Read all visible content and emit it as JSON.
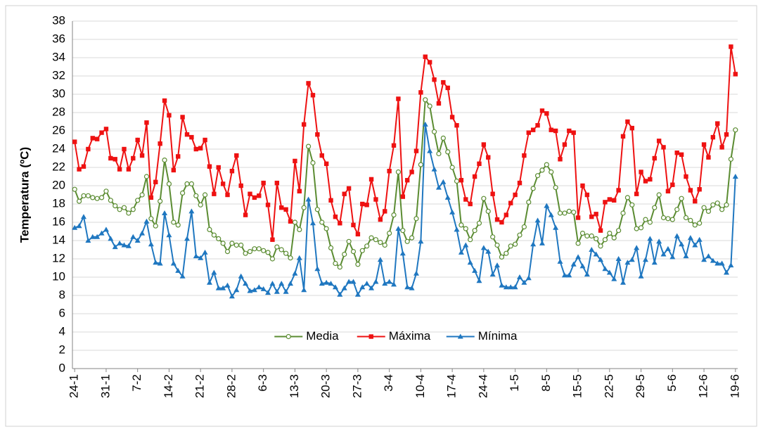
{
  "chart_data": {
    "type": "line",
    "y_label": "Temperatura (ºC)",
    "categories": [
      "24-1",
      null,
      null,
      null,
      null,
      null,
      null,
      "31-1",
      null,
      null,
      null,
      null,
      null,
      null,
      "7-2",
      null,
      null,
      null,
      null,
      null,
      null,
      "14-2",
      null,
      null,
      null,
      null,
      null,
      null,
      "21-2",
      null,
      null,
      null,
      null,
      null,
      null,
      "28-2",
      null,
      null,
      null,
      null,
      null,
      null,
      "6-3",
      null,
      null,
      null,
      null,
      null,
      null,
      "13-3",
      null,
      null,
      null,
      null,
      null,
      null,
      "20-3",
      null,
      null,
      null,
      null,
      null,
      null,
      "27-3",
      null,
      null,
      null,
      null,
      null,
      null,
      "3-4",
      null,
      null,
      null,
      null,
      null,
      null,
      "10-4",
      null,
      null,
      null,
      null,
      null,
      null,
      "17-4",
      null,
      null,
      null,
      null,
      null,
      null,
      "24-4",
      null,
      null,
      null,
      null,
      null,
      null,
      "1-5",
      null,
      null,
      null,
      null,
      null,
      null,
      "8-5",
      null,
      null,
      null,
      null,
      null,
      null,
      "15-5",
      null,
      null,
      null,
      null,
      null,
      null,
      "22-5",
      null,
      null,
      null,
      null,
      null,
      null,
      "29-5",
      null,
      null,
      null,
      null,
      null,
      null,
      "5-6",
      null,
      null,
      null,
      null,
      null,
      null,
      "12-6",
      null,
      null,
      null,
      null,
      null,
      null,
      "19-6"
    ],
    "series": [
      {
        "name": "Media",
        "color": "#5b8c32",
        "marker": "circle",
        "values": [
          19.6,
          18.3,
          18.9,
          18.9,
          18.7,
          18.6,
          18.7,
          19.4,
          18.4,
          17.8,
          17.4,
          17.6,
          17.0,
          17.4,
          18.4,
          19.0,
          21.0,
          16.4,
          15.6,
          18.3,
          22.8,
          20.2,
          16.0,
          15.7,
          19.2,
          20.2,
          20.2,
          18.9,
          17.9,
          19.0,
          15.2,
          14.6,
          14.2,
          13.7,
          12.8,
          13.7,
          13.5,
          13.5,
          12.6,
          12.8,
          13.1,
          13.1,
          12.9,
          12.7,
          12.0,
          13.3,
          13.0,
          12.6,
          12.1,
          16.0,
          15.2,
          17.6,
          24.3,
          22.5,
          17.4,
          16.0,
          15.3,
          13.2,
          11.5,
          11.1,
          12.5,
          13.9,
          12.8,
          11.4,
          12.9,
          13.4,
          14.3,
          14.1,
          13.8,
          13.5,
          14.8,
          16.8,
          21.5,
          15.1,
          13.9,
          14.3,
          16.4,
          22.3,
          29.4,
          28.7,
          25.9,
          23.5,
          25.2,
          23.7,
          22.0,
          20.5,
          15.7,
          15.3,
          14.1,
          15.1,
          15.9,
          18.6,
          17.2,
          14.4,
          13.5,
          12.2,
          12.6,
          13.4,
          13.6,
          14.6,
          15.5,
          18.2,
          19.7,
          21.1,
          21.7,
          22.3,
          21.5,
          19.8,
          17.0,
          17.0,
          17.2,
          17.1,
          13.7,
          14.8,
          14.5,
          14.5,
          14.2,
          13.4,
          14.1,
          14.8,
          14.3,
          15.1,
          17.0,
          18.7,
          17.9,
          15.3,
          15.4,
          16.3,
          16.0,
          17.6,
          19.0,
          16.5,
          16.4,
          16.3,
          17.4,
          18.6,
          16.5,
          16.2,
          15.7,
          15.9,
          17.6,
          17.2,
          17.9,
          18.1,
          17.4,
          17.9,
          22.9,
          26.1
        ]
      },
      {
        "name": "Máxima",
        "color": "#ee1111",
        "marker": "square",
        "values": [
          24.8,
          21.8,
          22.1,
          24.0,
          25.2,
          25.1,
          25.8,
          26.2,
          23.0,
          22.9,
          21.8,
          24.0,
          21.8,
          23.0,
          25.0,
          23.3,
          26.9,
          18.7,
          20.4,
          24.6,
          29.3,
          27.7,
          21.7,
          23.2,
          27.5,
          25.6,
          25.3,
          24.0,
          24.1,
          25.0,
          22.1,
          19.1,
          22.0,
          20.2,
          19.0,
          21.6,
          23.3,
          20.0,
          16.8,
          19.1,
          18.7,
          18.9,
          20.3,
          17.9,
          14.1,
          20.3,
          17.6,
          17.4,
          16.1,
          22.7,
          19.4,
          26.7,
          31.2,
          29.9,
          25.6,
          23.3,
          22.4,
          18.4,
          16.6,
          15.9,
          19.1,
          19.7,
          15.7,
          14.7,
          18.0,
          17.9,
          20.7,
          18.5,
          16.3,
          17.2,
          21.6,
          24.4,
          29.5,
          18.8,
          20.6,
          21.5,
          23.8,
          30.2,
          34.1,
          33.5,
          31.6,
          29.0,
          31.3,
          30.7,
          27.5,
          26.6,
          20.6,
          18.5,
          18.0,
          21.0,
          22.4,
          24.5,
          23.1,
          19.1,
          16.3,
          16.0,
          16.8,
          18.1,
          19.0,
          20.3,
          23.3,
          25.8,
          26.1,
          26.6,
          28.2,
          27.9,
          26.1,
          26.0,
          22.9,
          24.5,
          26.0,
          25.8,
          16.5,
          20.0,
          19.0,
          16.6,
          16.9,
          15.1,
          18.2,
          18.5,
          18.4,
          19.5,
          25.4,
          27.0,
          26.3,
          19.1,
          21.5,
          20.5,
          20.7,
          23.0,
          24.9,
          24.2,
          19.4,
          20.1,
          23.6,
          23.4,
          21.0,
          19.5,
          18.3,
          19.6,
          24.5,
          23.1,
          25.3,
          26.8,
          24.2,
          25.6,
          35.2,
          32.2
        ]
      },
      {
        "name": "Mínima",
        "color": "#1f77c0",
        "marker": "triangle",
        "values": [
          15.4,
          15.6,
          16.6,
          14.0,
          14.4,
          14.4,
          14.8,
          15.2,
          14.2,
          13.3,
          13.7,
          13.5,
          13.4,
          14.4,
          14.0,
          14.8,
          16.1,
          13.6,
          11.6,
          11.5,
          17.0,
          14.6,
          11.5,
          10.7,
          10.1,
          14.2,
          17.2,
          12.3,
          12.1,
          12.7,
          9.4,
          10.5,
          8.8,
          8.8,
          9.1,
          7.9,
          8.6,
          10.1,
          9.3,
          8.5,
          8.6,
          8.9,
          8.7,
          8.3,
          9.3,
          8.4,
          9.3,
          8.4,
          9.3,
          10.4,
          12.1,
          8.6,
          18.5,
          15.9,
          10.9,
          9.3,
          9.4,
          9.3,
          8.9,
          8.1,
          8.8,
          9.5,
          9.5,
          8.1,
          8.9,
          9.3,
          8.8,
          9.5,
          11.9,
          9.3,
          9.5,
          9.2,
          15.3,
          12.6,
          8.9,
          8.8,
          10.4,
          13.9,
          26.7,
          23.8,
          21.8,
          19.8,
          20.4,
          18.7,
          17.1,
          15.2,
          12.7,
          13.5,
          11.6,
          10.7,
          9.6,
          13.2,
          12.8,
          10.3,
          11.3,
          9.1,
          8.9,
          8.9,
          8.9,
          10.0,
          9.4,
          9.9,
          13.6,
          16.2,
          13.7,
          17.8,
          16.8,
          15.4,
          11.7,
          10.2,
          10.2,
          11.4,
          12.2,
          11.2,
          10.3,
          13.0,
          12.5,
          11.9,
          10.9,
          10.5,
          9.8,
          12.0,
          9.4,
          11.6,
          11.9,
          13.2,
          10.1,
          11.9,
          14.2,
          11.6,
          13.9,
          12.5,
          13.1,
          12.2,
          14.5,
          13.6,
          12.3,
          14.3,
          13.5,
          14.1,
          11.9,
          12.3,
          11.8,
          11.5,
          11.5,
          10.5,
          11.3,
          21.0
        ]
      }
    ],
    "ylim": [
      0,
      38
    ],
    "yticks": [
      0,
      2,
      4,
      6,
      8,
      10,
      12,
      14,
      16,
      18,
      20,
      22,
      24,
      26,
      28,
      30,
      32,
      34,
      36,
      38
    ],
    "grid": true,
    "legend": "lower center"
  }
}
